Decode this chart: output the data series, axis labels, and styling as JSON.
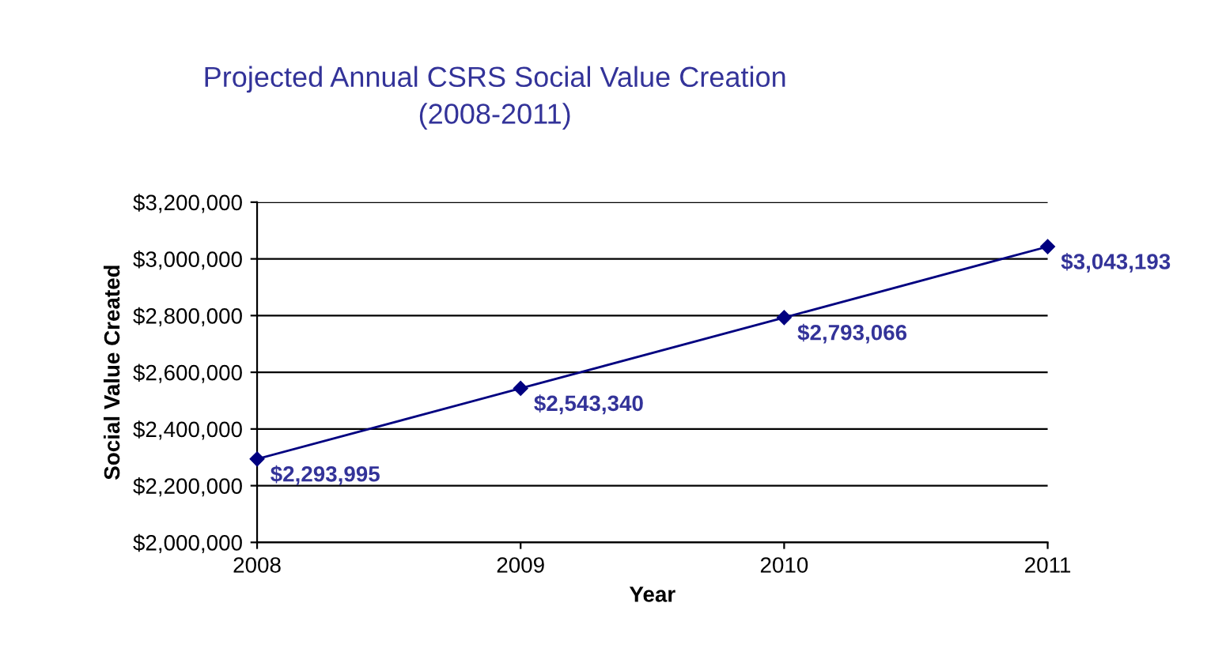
{
  "chart_data": {
    "type": "line",
    "title": "Projected Annual CSRS Social Value Creation\n(2008-2011)",
    "xlabel": "Year",
    "ylabel": "Social Value Created",
    "x": [
      2008,
      2009,
      2010,
      2011
    ],
    "series": [
      {
        "color": "#000080",
        "values": [
          2293995,
          2543340,
          2793066,
          3043193
        ],
        "value_labels": [
          "$2,293,995",
          "$2,543,340",
          "$2,793,066",
          "$3,043,193"
        ]
      }
    ],
    "xlim": [
      2008,
      2011
    ],
    "xticks": [
      2008,
      2009,
      2010,
      2011
    ],
    "ylim": [
      2000000,
      3200000
    ],
    "yticks": [
      {
        "value": 2000000,
        "label": "$2,000,000"
      },
      {
        "value": 2200000,
        "label": "$2,200,000"
      },
      {
        "value": 2400000,
        "label": "$2,400,000"
      },
      {
        "value": 2600000,
        "label": "$2,600,000"
      },
      {
        "value": 2800000,
        "label": "$2,800,000"
      },
      {
        "value": 3000000,
        "label": "$3,000,000"
      },
      {
        "value": 3200000,
        "label": "$3,200,000"
      }
    ],
    "grid": "y",
    "legend": false,
    "marker": "diamond",
    "line_style": "solid"
  }
}
